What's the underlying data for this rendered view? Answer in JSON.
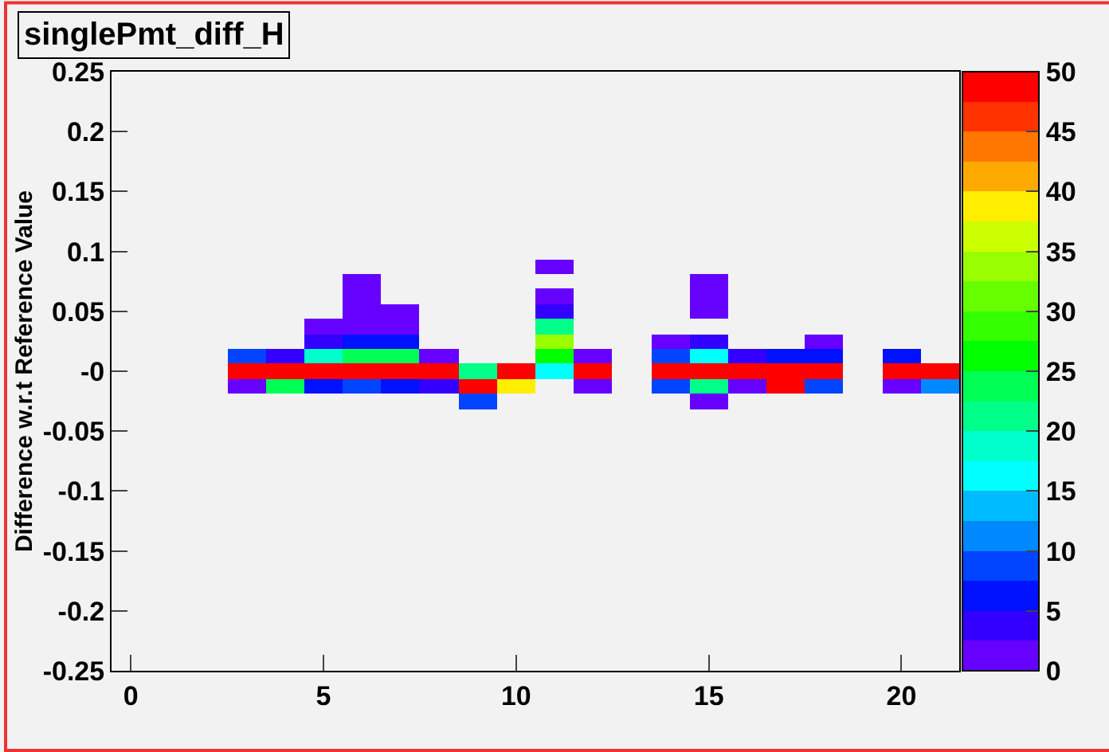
{
  "chart_data": {
    "type": "heatmap",
    "title": "singlePmt_diff_H",
    "ylabel": "Difference w.r.t Reference Value",
    "x": [
      3,
      4,
      5,
      6,
      7,
      8,
      9,
      10,
      11,
      12,
      13,
      14,
      15,
      16,
      17,
      18,
      19,
      20,
      21
    ],
    "y": [
      0.0875,
      0.075,
      0.0625,
      0.05,
      0.0375,
      0.025,
      0.0125,
      0,
      -0.0125,
      -0.025
    ],
    "cells": [
      [
        null,
        null,
        null,
        null,
        null,
        null,
        null,
        null,
        1,
        null,
        null,
        null,
        null,
        null,
        null,
        null,
        null,
        null,
        null
      ],
      [
        null,
        null,
        null,
        1,
        null,
        null,
        null,
        null,
        null,
        null,
        null,
        null,
        1,
        null,
        null,
        null,
        null,
        null,
        null
      ],
      [
        null,
        null,
        null,
        1,
        null,
        null,
        null,
        null,
        1,
        null,
        null,
        null,
        1,
        null,
        null,
        null,
        null,
        null,
        null
      ],
      [
        null,
        null,
        null,
        1,
        1,
        null,
        null,
        null,
        4,
        null,
        null,
        null,
        1,
        null,
        null,
        null,
        null,
        null,
        null
      ],
      [
        null,
        null,
        1,
        1,
        1,
        null,
        null,
        null,
        21,
        null,
        null,
        null,
        null,
        null,
        null,
        null,
        null,
        null,
        null
      ],
      [
        null,
        null,
        4,
        6,
        6,
        null,
        null,
        null,
        34,
        null,
        null,
        1,
        4,
        null,
        null,
        1,
        null,
        null,
        null
      ],
      [
        9,
        4,
        19,
        23,
        23,
        1,
        null,
        null,
        26,
        1,
        null,
        9,
        16,
        4,
        6,
        6,
        null,
        6,
        null
      ],
      [
        49,
        49,
        49,
        49,
        49,
        49,
        21,
        49,
        16,
        49,
        null,
        49,
        49,
        49,
        49,
        49,
        null,
        49,
        49
      ],
      [
        1,
        23,
        6,
        9,
        6,
        4,
        49,
        39,
        null,
        1,
        null,
        9,
        21,
        1,
        49,
        9,
        null,
        1,
        11
      ],
      [
        null,
        null,
        null,
        null,
        null,
        null,
        9,
        null,
        null,
        null,
        null,
        null,
        1,
        null,
        null,
        null,
        null,
        null,
        null
      ]
    ],
    "colors": [
      "#6600ff",
      "#3300ff",
      "#0011ff",
      "#0044ff",
      "#0088ff",
      "#00bbff",
      "#00ffff",
      "#00ffcc",
      "#00ff88",
      "#00ff55",
      "#00ff00",
      "#33ff00",
      "#66ff00",
      "#99ff00",
      "#ccff00",
      "#ffee00",
      "#ffaa00",
      "#ff7700",
      "#ff3300",
      "#ff0000"
    ],
    "clim": [
      0,
      50
    ],
    "cticks": [
      0,
      5,
      10,
      15,
      20,
      25,
      30,
      35,
      40,
      45,
      50
    ],
    "xlim": [
      -0.5,
      21.5
    ],
    "xticks": [
      0,
      5,
      10,
      15,
      20
    ],
    "ylim": [
      -0.25,
      0.25
    ],
    "yticks": [
      -0.25,
      -0.2,
      -0.15,
      -0.1,
      -0.05,
      {
        "value": 0,
        "label": "-0"
      },
      0.05,
      0.1,
      0.15,
      0.2,
      0.25
    ],
    "grid": false
  }
}
